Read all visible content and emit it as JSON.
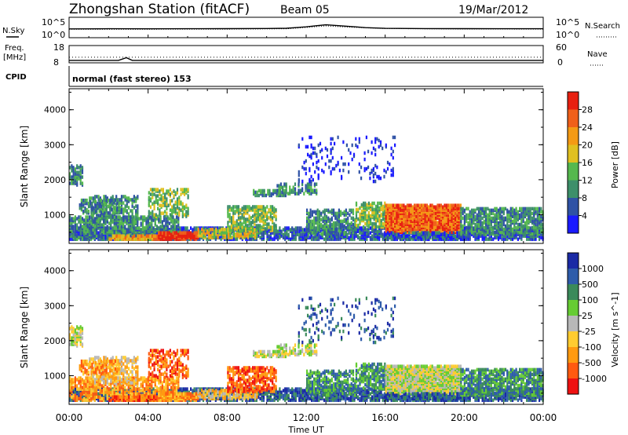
{
  "header": {
    "station": "Zhongshan Station (fitACF)",
    "beam": "Beam 05",
    "date": "19/Mar/2012"
  },
  "side_labels": {
    "nsky": "N.Sky",
    "nsearch": "N.Search",
    "freq_line1": "Freq.",
    "freq_line2": "[MHz]",
    "nave": "Nave",
    "cpid": "CPID",
    "cpid_value": "normal (fast stereo) 153"
  },
  "colors": {
    "power_scale": [
      "#1a1aff",
      "#2f52a5",
      "#3d8f6a",
      "#55b84e",
      "#e0c020",
      "#f49a14",
      "#f0601a",
      "#e82010"
    ],
    "velocity_scale": [
      "#ee1111",
      "#ff5a10",
      "#ff9a10",
      "#ffcc30",
      "#b8b8b8",
      "#66cc33",
      "#3a8a5a",
      "#2e5caa",
      "#1a2aa5"
    ]
  },
  "chart_data": [
    {
      "type": "line",
      "title": "",
      "panel": "noise",
      "left_ticks": [
        "10^5",
        "10^0"
      ],
      "right_ticks": [
        "10^5",
        "10^0"
      ],
      "series": [
        {
          "name": "N.Sky",
          "x": [
            0,
            2,
            4,
            6,
            8,
            10,
            11,
            12,
            12.5,
            13,
            13.5,
            14,
            14.5,
            15,
            16,
            18,
            20,
            22,
            24
          ],
          "values": [
            200,
            220,
            210,
            230,
            240,
            260,
            320,
            900,
            2000,
            4000,
            2500,
            1500,
            900,
            500,
            300,
            250,
            240,
            230,
            220
          ]
        },
        {
          "name": "N.Search",
          "x": [
            0,
            4,
            8,
            11,
            12,
            13,
            14,
            16,
            20,
            24
          ],
          "values": [
            150,
            160,
            170,
            220,
            600,
            1800,
            800,
            250,
            180,
            170
          ]
        }
      ]
    },
    {
      "type": "line",
      "title": "",
      "panel": "frequency",
      "left_ticks": [
        "18",
        "8"
      ],
      "right_ticks": [
        "60",
        "0"
      ],
      "series": [
        {
          "name": "Freq.",
          "x": [
            0,
            2.5,
            2.9,
            3.2,
            24
          ],
          "values": [
            8.6,
            8.6,
            10.5,
            8.6,
            8.6
          ]
        },
        {
          "name": "Nave",
          "x": [
            0,
            24
          ],
          "values": [
            17,
            17
          ]
        }
      ]
    },
    {
      "type": "heatmap",
      "title": "",
      "panel": "power",
      "ylabel": "Slant Range [km]",
      "ylim": [
        180,
        4600
      ],
      "yticks": [
        1000,
        2000,
        3000,
        4000
      ],
      "colorbar_label": "Power [dB]",
      "colorbar_ticks": [
        "4",
        "8",
        "12",
        "16",
        "20",
        "24",
        "28"
      ]
    },
    {
      "type": "heatmap",
      "title": "",
      "panel": "velocity",
      "ylabel": "Slant Range [km]",
      "ylim": [
        180,
        4600
      ],
      "yticks": [
        1000,
        2000,
        3000,
        4000
      ],
      "xlabel": "Time UT",
      "xticks": [
        "00:00",
        "04:00",
        "08:00",
        "12:00",
        "16:00",
        "20:00",
        "00:00"
      ],
      "colorbar_label": "Velocity [m s^-1]",
      "colorbar_ticks": [
        "1000",
        "500",
        "100",
        "25",
        "-25",
        "-100",
        "-500",
        "-1000"
      ]
    }
  ]
}
